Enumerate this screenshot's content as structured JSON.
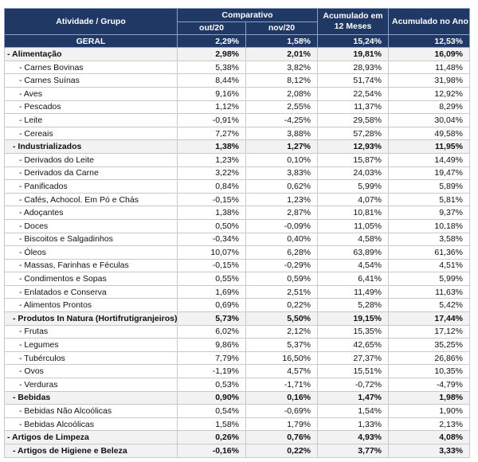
{
  "header": {
    "group": "Atividade / Grupo",
    "comparativo": "Comparativo",
    "months": [
      "out/20",
      "nov/20"
    ],
    "acc12": "Acumulado em 12 Meses",
    "accYear": "Acumulado no Ano"
  },
  "total": {
    "label": "GERAL",
    "cells": [
      "2,29%",
      "1,58%",
      "15,24%",
      "12,53%"
    ]
  },
  "rows": [
    {
      "label": "- Alimentação",
      "level": 0,
      "bold": true,
      "cells": [
        "2,98%",
        "2,01%",
        "19,81%",
        "16,09%"
      ]
    },
    {
      "label": "- Carnes Bovinas",
      "level": 2,
      "bold": false,
      "cells": [
        "5,38%",
        "3,82%",
        "28,93%",
        "11,48%"
      ]
    },
    {
      "label": "- Carnes Suínas",
      "level": 2,
      "bold": false,
      "cells": [
        "8,44%",
        "8,12%",
        "51,74%",
        "31,98%"
      ]
    },
    {
      "label": "- Aves",
      "level": 2,
      "bold": false,
      "cells": [
        "9,16%",
        "2,08%",
        "22,54%",
        "12,92%"
      ]
    },
    {
      "label": "- Pescados",
      "level": 2,
      "bold": false,
      "cells": [
        "1,12%",
        "2,55%",
        "11,37%",
        "8,29%"
      ]
    },
    {
      "label": "- Leite",
      "level": 2,
      "bold": false,
      "cells": [
        "-0,91%",
        "-4,25%",
        "29,58%",
        "30,04%"
      ]
    },
    {
      "label": "- Cereais",
      "level": 2,
      "bold": false,
      "cells": [
        "7,27%",
        "3,88%",
        "57,28%",
        "49,58%"
      ]
    },
    {
      "label": "- Industrializados",
      "level": 1,
      "bold": true,
      "cells": [
        "1,38%",
        "1,27%",
        "12,93%",
        "11,95%"
      ]
    },
    {
      "label": "- Derivados do Leite",
      "level": 2,
      "bold": false,
      "cells": [
        "1,23%",
        "0,10%",
        "15,87%",
        "14,49%"
      ]
    },
    {
      "label": "- Derivados da Carne",
      "level": 2,
      "bold": false,
      "cells": [
        "3,22%",
        "3,83%",
        "24,03%",
        "19,47%"
      ]
    },
    {
      "label": "- Panificados",
      "level": 2,
      "bold": false,
      "cells": [
        "0,84%",
        "0,62%",
        "5,99%",
        "5,89%"
      ]
    },
    {
      "label": "- Cafés, Achocol. Em Pó e Chás",
      "level": 2,
      "bold": false,
      "cells": [
        "-0,15%",
        "1,23%",
        "4,07%",
        "5,81%"
      ]
    },
    {
      "label": "- Adoçantes",
      "level": 2,
      "bold": false,
      "cells": [
        "1,38%",
        "2,87%",
        "10,81%",
        "9,37%"
      ]
    },
    {
      "label": "- Doces",
      "level": 2,
      "bold": false,
      "cells": [
        "0,50%",
        "-0,09%",
        "11,05%",
        "10,18%"
      ]
    },
    {
      "label": "- Biscoitos e Salgadinhos",
      "level": 2,
      "bold": false,
      "cells": [
        "-0,34%",
        "0,40%",
        "4,58%",
        "3,58%"
      ]
    },
    {
      "label": "- Óleos",
      "level": 2,
      "bold": false,
      "cells": [
        "10,07%",
        "6,28%",
        "63,89%",
        "61,36%"
      ]
    },
    {
      "label": "- Massas, Farinhas e Féculas",
      "level": 2,
      "bold": false,
      "cells": [
        "-0,15%",
        "-0,29%",
        "4,54%",
        "4,51%"
      ]
    },
    {
      "label": "- Condimentos e Sopas",
      "level": 2,
      "bold": false,
      "cells": [
        "0,55%",
        "0,59%",
        "6,41%",
        "5,99%"
      ]
    },
    {
      "label": "- Enlatados e Conserva",
      "level": 2,
      "bold": false,
      "cells": [
        "1,69%",
        "2,51%",
        "11,49%",
        "11,63%"
      ]
    },
    {
      "label": "- Alimentos Prontos",
      "level": 2,
      "bold": false,
      "cells": [
        "0,69%",
        "0,22%",
        "5,28%",
        "5,42%"
      ]
    },
    {
      "label": "- Produtos In Natura (Hortifrutigranjeiros)",
      "level": 1,
      "bold": true,
      "cells": [
        "5,73%",
        "5,50%",
        "19,15%",
        "17,44%"
      ]
    },
    {
      "label": "- Frutas",
      "level": 2,
      "bold": false,
      "cells": [
        "6,02%",
        "2,12%",
        "15,35%",
        "17,12%"
      ]
    },
    {
      "label": "- Legumes",
      "level": 2,
      "bold": false,
      "cells": [
        "9,86%",
        "5,37%",
        "42,65%",
        "35,25%"
      ]
    },
    {
      "label": "- Tubérculos",
      "level": 2,
      "bold": false,
      "cells": [
        "7,79%",
        "16,50%",
        "27,37%",
        "26,86%"
      ]
    },
    {
      "label": "- Ovos",
      "level": 2,
      "bold": false,
      "cells": [
        "-1,19%",
        "4,57%",
        "15,51%",
        "10,35%"
      ]
    },
    {
      "label": "- Verduras",
      "level": 2,
      "bold": false,
      "cells": [
        "0,53%",
        "-1,71%",
        "-0,72%",
        "-4,79%"
      ]
    },
    {
      "label": "- Bebidas",
      "level": 1,
      "bold": true,
      "cells": [
        "0,90%",
        "0,16%",
        "1,47%",
        "1,98%"
      ]
    },
    {
      "label": "- Bebidas Não Alcoólicas",
      "level": 2,
      "bold": false,
      "cells": [
        "0,54%",
        "-0,69%",
        "1,54%",
        "1,90%"
      ]
    },
    {
      "label": "- Bebidas Alcoólicas",
      "level": 2,
      "bold": false,
      "cells": [
        "1,58%",
        "1,79%",
        "1,33%",
        "2,13%"
      ]
    },
    {
      "label": "- Artigos de Limpeza",
      "level": 0,
      "bold": true,
      "cells": [
        "0,26%",
        "0,76%",
        "4,93%",
        "4,08%"
      ]
    },
    {
      "label": "- Artigos de Higiene e Beleza",
      "level": 1,
      "bold": true,
      "cells": [
        "-0,16%",
        "0,22%",
        "3,77%",
        "3,33%"
      ]
    }
  ]
}
